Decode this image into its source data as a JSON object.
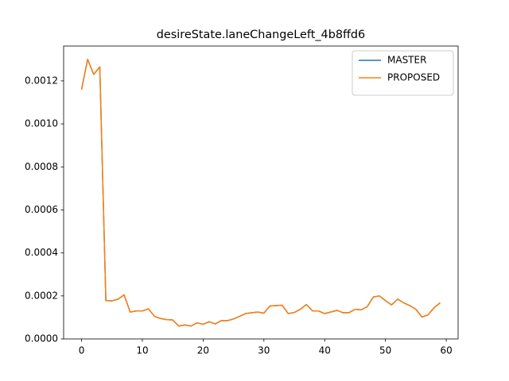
{
  "chart_data": {
    "type": "line",
    "title": "desireState.laneChangeLeft_4b8ffd6",
    "x": [
      0,
      1,
      2,
      3,
      4,
      5,
      6,
      7,
      8,
      9,
      10,
      11,
      12,
      13,
      14,
      15,
      16,
      17,
      18,
      19,
      20,
      21,
      22,
      23,
      24,
      25,
      26,
      27,
      28,
      29,
      30,
      31,
      32,
      33,
      34,
      35,
      36,
      37,
      38,
      39,
      40,
      41,
      42,
      43,
      44,
      45,
      46,
      47,
      48,
      49,
      50,
      51,
      52,
      53,
      54,
      55,
      56,
      57,
      58,
      59
    ],
    "series": [
      {
        "name": "MASTER",
        "color": "#1f77b4",
        "values": [
          0.00116,
          0.0013,
          0.00123,
          0.001265,
          0.000178,
          0.000177,
          0.000185,
          0.000205,
          0.000125,
          0.00013,
          0.00013,
          0.00014,
          0.000105,
          9.5e-05,
          9e-05,
          8.8e-05,
          6e-05,
          6.5e-05,
          6e-05,
          7.5e-05,
          6.8e-05,
          8e-05,
          7e-05,
          8.5e-05,
          8.5e-05,
          9.3e-05,
          0.000105,
          0.000118,
          0.000122,
          0.000125,
          0.00012,
          0.000153,
          0.000155,
          0.000157,
          0.000118,
          0.000123,
          0.000138,
          0.00016,
          0.00013,
          0.00013,
          0.000118,
          0.000125,
          0.000133,
          0.000122,
          0.000122,
          0.000138,
          0.000135,
          0.00015,
          0.000195,
          0.0002,
          0.000178,
          0.000158,
          0.000185,
          0.000168,
          0.000155,
          0.000138,
          0.000102,
          0.000112,
          0.000145,
          0.000168
        ]
      },
      {
        "name": "PROPOSED",
        "color": "#ff7f0e",
        "values": [
          0.00116,
          0.0013,
          0.00123,
          0.001265,
          0.000178,
          0.000177,
          0.000185,
          0.000205,
          0.000125,
          0.00013,
          0.00013,
          0.00014,
          0.000105,
          9.5e-05,
          9e-05,
          8.8e-05,
          6e-05,
          6.5e-05,
          6e-05,
          7.5e-05,
          6.8e-05,
          8e-05,
          7e-05,
          8.5e-05,
          8.5e-05,
          9.3e-05,
          0.000105,
          0.000118,
          0.000122,
          0.000125,
          0.00012,
          0.000153,
          0.000155,
          0.000157,
          0.000118,
          0.000123,
          0.000138,
          0.00016,
          0.00013,
          0.00013,
          0.000118,
          0.000125,
          0.000133,
          0.000122,
          0.000122,
          0.000138,
          0.000135,
          0.00015,
          0.000195,
          0.0002,
          0.000178,
          0.000158,
          0.000185,
          0.000168,
          0.000155,
          0.000138,
          0.000102,
          0.000112,
          0.000145,
          0.000168
        ]
      }
    ],
    "xlim": [
      -2.95,
      61.95
    ],
    "xticks": [
      0,
      10,
      20,
      30,
      40,
      50,
      60
    ],
    "ylim": [
      0,
      0.001362
    ],
    "yticks": [
      {
        "value": 0,
        "label": "0.0000"
      },
      {
        "value": 0.0002,
        "label": "0.0002"
      },
      {
        "value": 0.0004,
        "label": "0.0004"
      },
      {
        "value": 0.0006,
        "label": "0.0006"
      },
      {
        "value": 0.0008,
        "label": "0.0008"
      },
      {
        "value": 0.001,
        "label": "0.0010"
      },
      {
        "value": 0.0012,
        "label": "0.0012"
      }
    ],
    "legend": "upper right"
  }
}
